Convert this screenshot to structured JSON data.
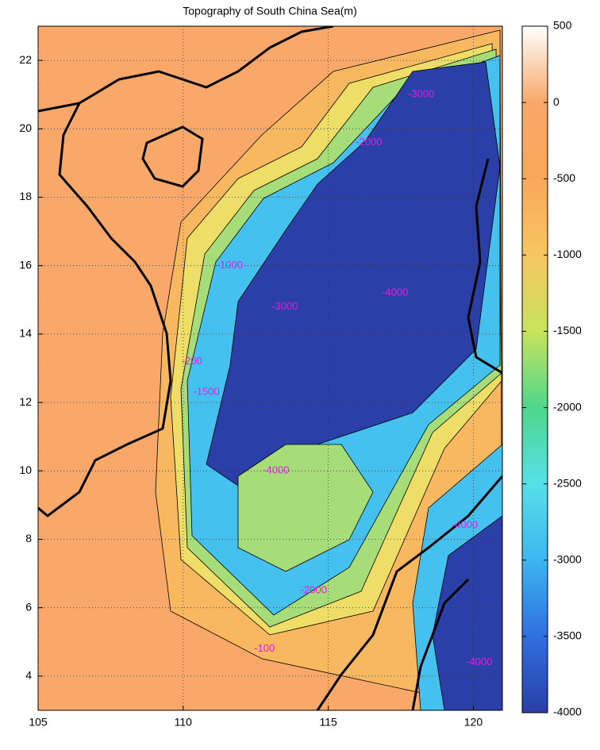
{
  "chart_data": {
    "type": "contour-map",
    "title": "Topography of South China Sea(m)",
    "xlim": [
      105,
      121
    ],
    "xticks": [
      105,
      110,
      115,
      120
    ],
    "ylim": [
      3,
      23
    ],
    "yticks": [
      4,
      6,
      8,
      10,
      12,
      14,
      16,
      18,
      20,
      22
    ],
    "grid": true,
    "clim": [
      -4000,
      500
    ],
    "cticks": [
      500,
      0,
      -500,
      -1000,
      -1500,
      -2000,
      -2500,
      -3000,
      -3500,
      -4000
    ],
    "colormap": [
      "#2b3fa8",
      "#2f6fe0",
      "#3cb6f0",
      "#55e0e8",
      "#4fd68c",
      "#c8e45c",
      "#f7c560",
      "#f9a85a",
      "#f7a868",
      "#ffffff"
    ],
    "contour_labels": [
      {
        "lon": 117.3,
        "lat": 15.2,
        "text": "-4000"
      },
      {
        "lon": 113.5,
        "lat": 14.8,
        "text": "-3000"
      },
      {
        "lon": 116.4,
        "lat": 19.6,
        "text": "-2000"
      },
      {
        "lon": 111.6,
        "lat": 16.0,
        "text": "-1000"
      },
      {
        "lon": 110.8,
        "lat": 12.3,
        "text": "-1500"
      },
      {
        "lon": 110.3,
        "lat": 13.2,
        "text": "-200"
      },
      {
        "lon": 112.8,
        "lat": 4.8,
        "text": "-100"
      },
      {
        "lon": 120.2,
        "lat": 4.4,
        "text": "-4000"
      },
      {
        "lon": 119.7,
        "lat": 8.4,
        "text": "-4000"
      },
      {
        "lon": 113.2,
        "lat": 10.0,
        "text": "-4000"
      },
      {
        "lon": 118.2,
        "lat": 21.0,
        "text": "-3000"
      },
      {
        "lon": 114.5,
        "lat": 6.5,
        "text": "-2000"
      }
    ]
  }
}
